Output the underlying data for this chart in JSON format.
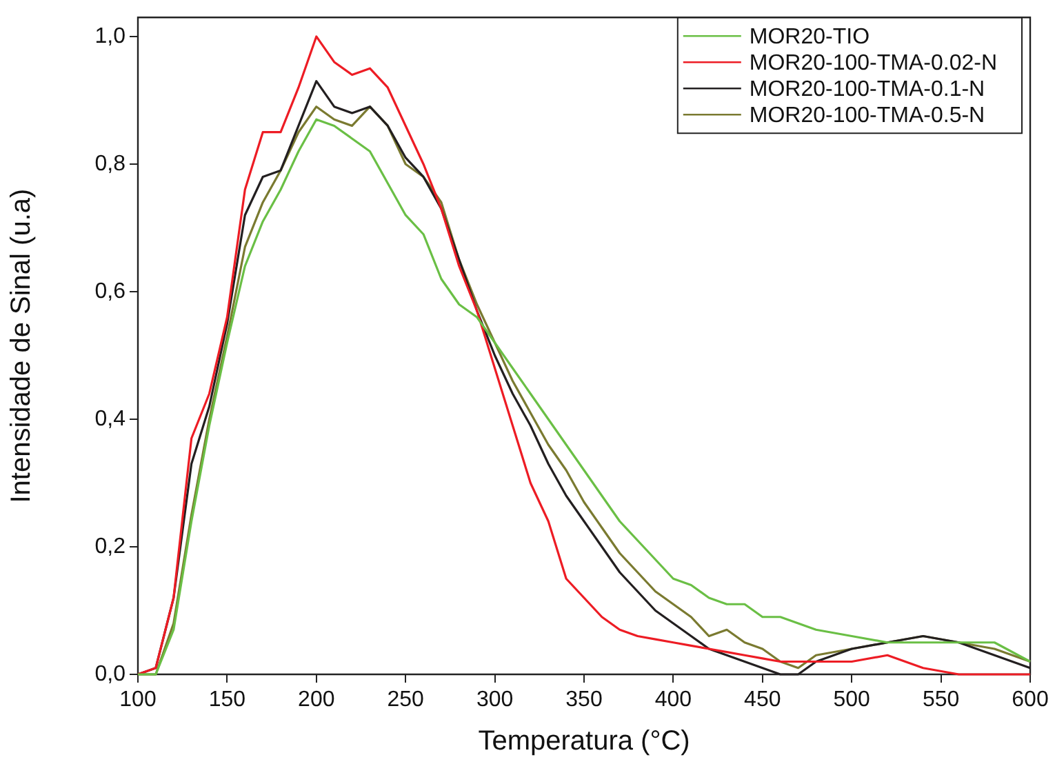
{
  "chart_data": {
    "type": "line",
    "xlabel": "Temperatura (°C)",
    "ylabel": "Intensidade de Sinal (u.a)",
    "xlim": [
      100,
      600
    ],
    "xticks": [
      100,
      150,
      200,
      250,
      300,
      350,
      400,
      450,
      500,
      550,
      600
    ],
    "ylim": [
      0,
      1.03
    ],
    "yticks": [
      {
        "value": 0,
        "label": "0,0"
      },
      {
        "value": 0.2,
        "label": "0,2"
      },
      {
        "value": 0.4,
        "label": "0,4"
      },
      {
        "value": 0.6,
        "label": "0,6"
      },
      {
        "value": 0.8,
        "label": "0,8"
      },
      {
        "value": 1.0,
        "label": "1,0"
      }
    ],
    "grid": false,
    "legend": "top right",
    "marker": "none",
    "line_style": "solid",
    "x": [
      100,
      110,
      120,
      130,
      140,
      150,
      160,
      170,
      180,
      190,
      200,
      210,
      220,
      230,
      240,
      250,
      260,
      270,
      280,
      290,
      300,
      310,
      320,
      330,
      340,
      350,
      360,
      370,
      380,
      390,
      400,
      410,
      420,
      430,
      440,
      450,
      460,
      470,
      480,
      500,
      520,
      540,
      560,
      580,
      600
    ],
    "series": [
      {
        "name": "MOR20-TIO",
        "color": "#6abf45",
        "values": [
          0,
          0,
          0.07,
          0.24,
          0.39,
          0.52,
          0.64,
          0.71,
          0.76,
          0.82,
          0.87,
          0.86,
          0.84,
          0.82,
          0.77,
          0.72,
          0.69,
          0.62,
          0.58,
          0.56,
          0.52,
          0.48,
          0.44,
          0.4,
          0.36,
          0.32,
          0.28,
          0.24,
          0.21,
          0.18,
          0.15,
          0.14,
          0.12,
          0.11,
          0.11,
          0.09,
          0.09,
          0.08,
          0.07,
          0.06,
          0.05,
          0.05,
          0.05,
          0.05,
          0.02
        ]
      },
      {
        "name": "MOR20-100-TMA-0.02-N",
        "color": "#ed1c24",
        "values": [
          0,
          0.01,
          0.12,
          0.37,
          0.44,
          0.56,
          0.76,
          0.85,
          0.85,
          0.92,
          1.0,
          0.96,
          0.94,
          0.95,
          0.92,
          0.86,
          0.8,
          0.73,
          0.64,
          0.57,
          0.48,
          0.39,
          0.3,
          0.24,
          0.15,
          0.12,
          0.09,
          0.07,
          0.06,
          0.055,
          0.05,
          0.045,
          0.04,
          0.035,
          0.03,
          0.025,
          0.02,
          0.02,
          0.02,
          0.02,
          0.03,
          0.01,
          0,
          0,
          0
        ]
      },
      {
        "name": "MOR20-100-TMA-0.1-N",
        "color": "#231f20",
        "values": [
          0,
          0.01,
          0.12,
          0.33,
          0.42,
          0.55,
          0.72,
          0.78,
          0.79,
          0.86,
          0.93,
          0.89,
          0.88,
          0.89,
          0.86,
          0.81,
          0.78,
          0.73,
          0.65,
          0.57,
          0.5,
          0.44,
          0.39,
          0.33,
          0.28,
          0.24,
          0.2,
          0.16,
          0.13,
          0.1,
          0.08,
          0.06,
          0.04,
          0.03,
          0.02,
          0.01,
          0,
          0,
          0.02,
          0.04,
          0.05,
          0.06,
          0.05,
          0.03,
          0.01
        ]
      },
      {
        "name": "MOR20-100-TMA-0.5-N",
        "color": "#7a7a30",
        "values": [
          0,
          0,
          0.08,
          0.25,
          0.4,
          0.53,
          0.67,
          0.74,
          0.79,
          0.85,
          0.89,
          0.87,
          0.86,
          0.89,
          0.86,
          0.8,
          0.78,
          0.74,
          0.65,
          0.58,
          0.52,
          0.46,
          0.41,
          0.36,
          0.32,
          0.27,
          0.23,
          0.19,
          0.16,
          0.13,
          0.11,
          0.09,
          0.06,
          0.07,
          0.05,
          0.04,
          0.02,
          0.01,
          0.03,
          0.04,
          0.05,
          0.06,
          0.05,
          0.04,
          0.02
        ]
      }
    ]
  }
}
